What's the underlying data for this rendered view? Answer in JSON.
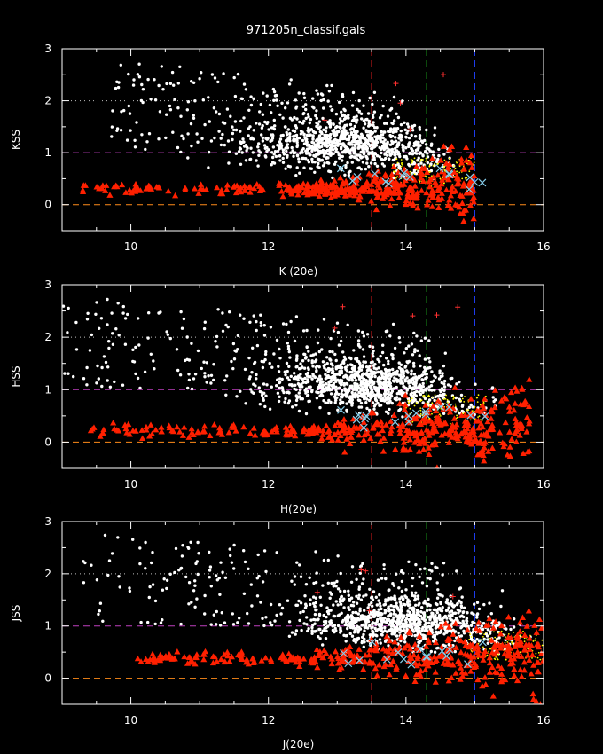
{
  "chart_data": {
    "type": "scatter",
    "title": "971205n_classif.gals",
    "colors": {
      "background": "#000000",
      "axes": "#ffffff",
      "galaxies": "#ffffff",
      "stars": "#ff2000",
      "crosses": "#87ceeb",
      "yellow_points": "#ffff00",
      "plus_markers": "#ff3030",
      "ref_line_0": "#ff8c1a",
      "ref_line_1": "#c040c0",
      "ref_line_2": "#c0c0c0",
      "vline_red": "#ff2020",
      "vline_green": "#20c020",
      "vline_blue": "#2040ff"
    },
    "panels": [
      {
        "id": "kss",
        "ylabel": "KSS",
        "xlabel": "K (20e)",
        "xlim": [
          9,
          16
        ],
        "ylim": [
          -0.5,
          3
        ],
        "xticks": [
          10,
          12,
          14,
          16
        ],
        "yticks": [
          0,
          1,
          2,
          3
        ],
        "hlines": [
          {
            "y": 0,
            "style": "dashed",
            "color": "#ff8c1a"
          },
          {
            "y": 1,
            "style": "dashed",
            "color": "#c040c0"
          },
          {
            "y": 2,
            "style": "dotted",
            "color": "#c0c0c0"
          }
        ],
        "vlines": [
          {
            "x": 13.5,
            "color": "#ff2020"
          },
          {
            "x": 14.3,
            "color": "#20c020"
          },
          {
            "x": 15.0,
            "color": "#2040ff"
          }
        ],
        "galaxy_cloud": {
          "x_range": [
            9.7,
            14.7
          ],
          "center": [
            13.2,
            1.05
          ]
        },
        "star_sequence": {
          "x_range": [
            9.3,
            15.0
          ],
          "y_level": 0.3
        }
      },
      {
        "id": "hss",
        "ylabel": "HSS",
        "xlabel": "H(20e)",
        "xlim": [
          9,
          16
        ],
        "ylim": [
          -0.5,
          3
        ],
        "xticks": [
          10,
          12,
          14,
          16
        ],
        "yticks": [
          0,
          1,
          2,
          3
        ],
        "hlines": [
          {
            "y": 0,
            "style": "dashed",
            "color": "#ff8c1a"
          },
          {
            "y": 1,
            "style": "dashed",
            "color": "#c040c0"
          },
          {
            "y": 2,
            "style": "dotted",
            "color": "#c0c0c0"
          }
        ],
        "vlines": [
          {
            "x": 13.5,
            "color": "#ff2020"
          },
          {
            "x": 14.3,
            "color": "#20c020"
          },
          {
            "x": 15.0,
            "color": "#2040ff"
          }
        ],
        "galaxy_cloud": {
          "x_range": [
            9.0,
            15.3
          ],
          "center": [
            13.4,
            1.0
          ]
        },
        "star_sequence": {
          "x_range": [
            9.4,
            15.8
          ],
          "y_level": 0.22
        }
      },
      {
        "id": "jss",
        "ylabel": "JSS",
        "xlabel": "J(20e)",
        "xlim": [
          9,
          16
        ],
        "ylim": [
          -0.5,
          3
        ],
        "xticks": [
          10,
          12,
          14,
          16
        ],
        "yticks": [
          0,
          1,
          2,
          3
        ],
        "hlines": [
          {
            "y": 0,
            "style": "dashed",
            "color": "#ff8c1a"
          },
          {
            "y": 1,
            "style": "dashed",
            "color": "#c040c0"
          },
          {
            "y": 2,
            "style": "dotted",
            "color": "#c0c0c0"
          }
        ],
        "vlines": [
          {
            "x": 13.5,
            "color": "#ff2020"
          },
          {
            "x": 14.3,
            "color": "#20c020"
          },
          {
            "x": 15.0,
            "color": "#2040ff"
          }
        ],
        "galaxy_cloud": {
          "x_range": [
            9.3,
            16.0
          ],
          "center": [
            14.0,
            1.0
          ]
        },
        "star_sequence": {
          "x_range": [
            10.1,
            16.0
          ],
          "y_level": 0.38
        }
      }
    ]
  }
}
